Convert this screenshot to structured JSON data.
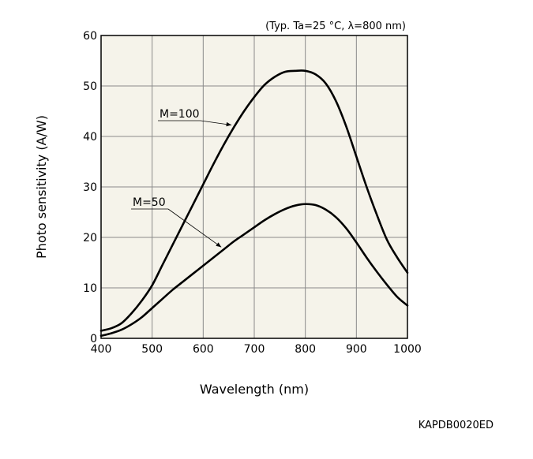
{
  "chart_data": {
    "type": "line",
    "title": "",
    "conditions": "(Typ. Ta=25 °C, λ=800 nm)",
    "xlabel": "Wavelength (nm)",
    "ylabel": "Photo sensitivity (A/W)",
    "xlim": [
      400,
      1000
    ],
    "ylim": [
      0,
      60
    ],
    "xticks": [
      400,
      500,
      600,
      700,
      800,
      900,
      1000
    ],
    "yticks": [
      0,
      10,
      20,
      30,
      40,
      50,
      60
    ],
    "grid": true,
    "legend": "none",
    "series": [
      {
        "name": "M=100",
        "x": [
          400,
          420,
          440,
          460,
          480,
          500,
          520,
          540,
          560,
          580,
          600,
          620,
          640,
          660,
          680,
          700,
          720,
          740,
          760,
          780,
          800,
          820,
          840,
          860,
          880,
          900,
          920,
          940,
          960,
          980,
          1000
        ],
        "y": [
          1.5,
          2.0,
          3.0,
          5.0,
          7.5,
          10.5,
          14.5,
          18.5,
          22.5,
          26.5,
          30.5,
          34.5,
          38.3,
          41.8,
          45.0,
          47.8,
          50.2,
          51.8,
          52.8,
          53.0,
          53.0,
          52.3,
          50.5,
          47.0,
          42.0,
          36.0,
          30.0,
          24.5,
          19.5,
          16.0,
          13.0
        ]
      },
      {
        "name": "M=50",
        "x": [
          400,
          420,
          440,
          460,
          480,
          500,
          520,
          540,
          560,
          580,
          600,
          620,
          640,
          660,
          680,
          700,
          720,
          740,
          760,
          780,
          800,
          820,
          840,
          860,
          880,
          900,
          920,
          940,
          960,
          980,
          1000
        ],
        "y": [
          0.5,
          1.0,
          1.7,
          2.8,
          4.2,
          6.0,
          7.8,
          9.6,
          11.2,
          12.8,
          14.4,
          16.0,
          17.6,
          19.2,
          20.6,
          22.0,
          23.4,
          24.6,
          25.6,
          26.3,
          26.6,
          26.4,
          25.5,
          24.0,
          21.8,
          19.0,
          16.0,
          13.2,
          10.6,
          8.2,
          6.5
        ]
      }
    ],
    "annotations": [
      {
        "text": "M=100",
        "series": "M=100",
        "x": 660
      },
      {
        "text": "M=50",
        "series": "M=50",
        "x": 640
      }
    ]
  },
  "figure_code": "KAPDB0020ED"
}
